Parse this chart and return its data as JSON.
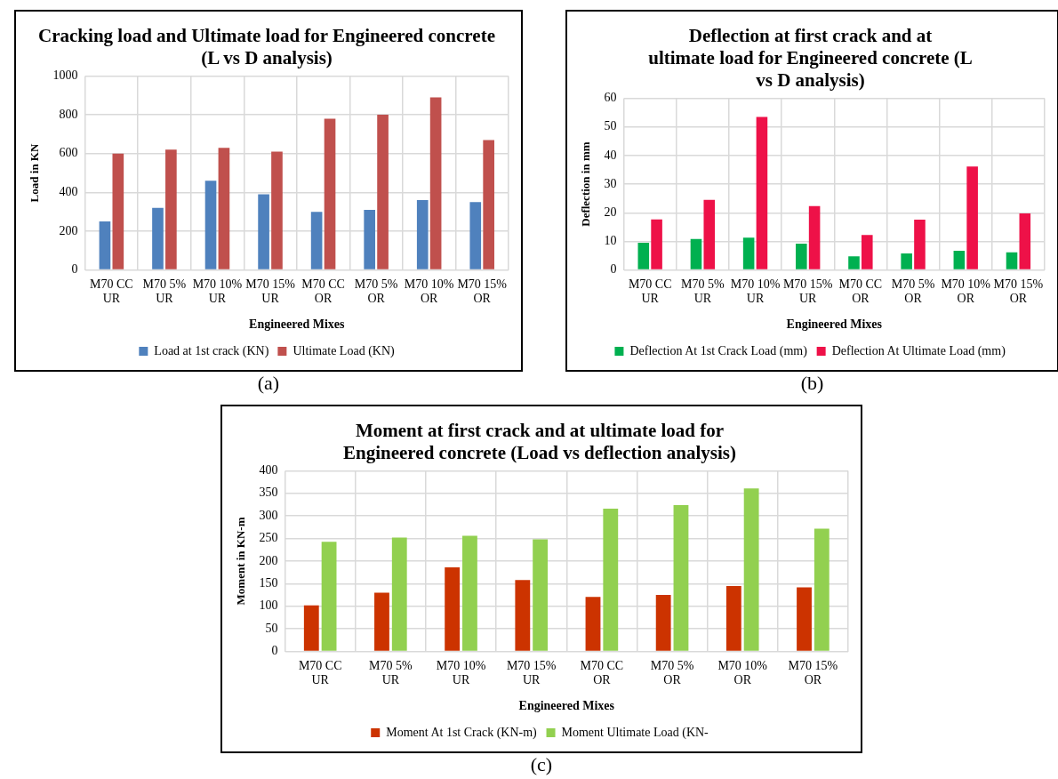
{
  "chart_data": [
    {
      "type": "bar",
      "title": "Cracking load and Ultimate load for Engineered concrete (L vs D analysis)",
      "xlabel": "Engineered Mixes",
      "ylabel": "Load in KN",
      "categories": [
        "M70 CC UR",
        "M70 5% UR",
        "M70 10% UR",
        "M70 15% UR",
        "M70 CC OR",
        "M70 5% OR",
        "M70 10% OR",
        "M70 15% OR"
      ],
      "series": [
        {
          "name": "Load at 1st crack (KN)",
          "color": "#4f81bd",
          "values": [
            250,
            320,
            460,
            390,
            300,
            310,
            360,
            350
          ]
        },
        {
          "name": "Ultimate Load (KN)",
          "color": "#c0504d",
          "values": [
            600,
            620,
            630,
            610,
            780,
            800,
            890,
            670
          ]
        }
      ],
      "ylim": [
        0,
        1000
      ],
      "yticks": [
        0,
        200,
        400,
        600,
        800,
        1000
      ],
      "grid": true,
      "legend": "bottom",
      "annotations": [
        "(a)"
      ]
    },
    {
      "type": "bar",
      "title": "Deflection at first crack and at ultimate load for Engineered concrete (L vs D analysis)",
      "xlabel": "Engineered Mixes",
      "ylabel": "Deflection in mm",
      "categories": [
        "M70 CC UR",
        "M70 5% UR",
        "M70 10% UR",
        "M70 15% UR",
        "M70 CC OR",
        "M70 5% OR",
        "M70 10% OR",
        "M70 15% OR"
      ],
      "series": [
        {
          "name": "Deflection At 1st Crack Load (mm)",
          "color": "#00b050",
          "values": [
            9.5,
            10.8,
            11.3,
            9.2,
            4.8,
            5.8,
            6.7,
            6.2
          ]
        },
        {
          "name": "Deflection At Ultimate Load (mm)",
          "color": "#ee1148",
          "values": [
            17.7,
            24.5,
            53.5,
            22.3,
            12.2,
            17.6,
            36.2,
            19.8
          ]
        }
      ],
      "ylim": [
        0,
        60
      ],
      "yticks": [
        0,
        10,
        20,
        30,
        40,
        50,
        60
      ],
      "grid": true,
      "legend": "bottom",
      "annotations": [
        "(b)"
      ]
    },
    {
      "type": "bar",
      "title": "Moment at first crack and at ultimate load for Engineered concrete (Load vs deflection analysis)",
      "xlabel": "Engineered Mixes",
      "ylabel": "Moment in KN-m",
      "categories": [
        "M70 CC UR",
        "M70 5% UR",
        "M70 10% UR",
        "M70 15% UR",
        "M70 CC OR",
        "M70 5% OR",
        "M70 10% OR",
        "M70 15% OR"
      ],
      "series": [
        {
          "name": "Moment At 1st Crack (KN-m)",
          "color": "#cc3300",
          "values": [
            102,
            130,
            186,
            158,
            121,
            125,
            145,
            142
          ]
        },
        {
          "name": "Moment Ultimate Load (KN-",
          "color": "#92d050",
          "values": [
            243,
            252,
            256,
            248,
            316,
            324,
            361,
            272
          ]
        }
      ],
      "ylim": [
        0,
        400
      ],
      "yticks": [
        0,
        50,
        100,
        150,
        200,
        250,
        300,
        350,
        400
      ],
      "grid": true,
      "legend": "bottom",
      "annotations": [
        "(c)"
      ]
    }
  ]
}
